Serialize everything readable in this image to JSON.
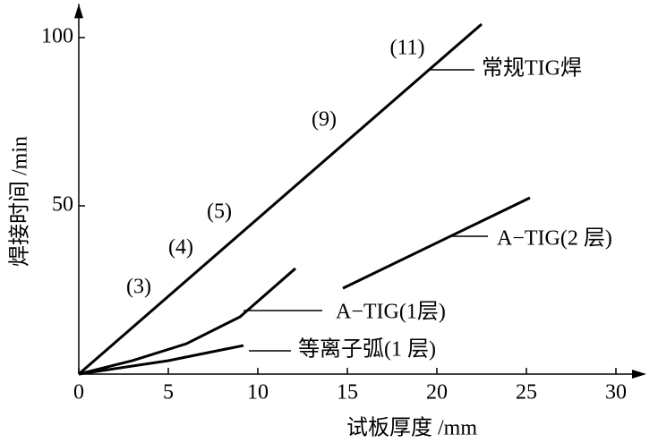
{
  "chart_data": {
    "type": "line",
    "x_label": "试板厚度 /mm",
    "y_label": "焊接时间 /min",
    "xlim": [
      0,
      31.5
    ],
    "ylim": [
      0,
      110
    ],
    "xticks": [
      0,
      5,
      10,
      15,
      20,
      25,
      30
    ],
    "yticks": [
      50,
      100
    ],
    "series": [
      {
        "name": "常规TIG焊",
        "color": "#000000",
        "x": [
          0,
          22.5
        ],
        "values": [
          0,
          104
        ]
      },
      {
        "name": "A−TIG(2 层)",
        "color": "#000000",
        "x": [
          14.75,
          25.2
        ],
        "values": [
          25.5,
          52.4
        ]
      },
      {
        "name": "A−TIG(1层)",
        "color": "#000000",
        "x": [
          0,
          3,
          6,
          9,
          12.1
        ],
        "values": [
          0,
          4,
          9,
          17,
          31.4
        ]
      },
      {
        "name": "等离子弧(1 层)",
        "color": "#000000",
        "x": [
          0,
          5,
          9.2
        ],
        "values": [
          0,
          4,
          8.5
        ]
      }
    ],
    "annotations": [
      "(3)",
      "(4)",
      "(5)",
      "(9)",
      "(11)"
    ]
  }
}
